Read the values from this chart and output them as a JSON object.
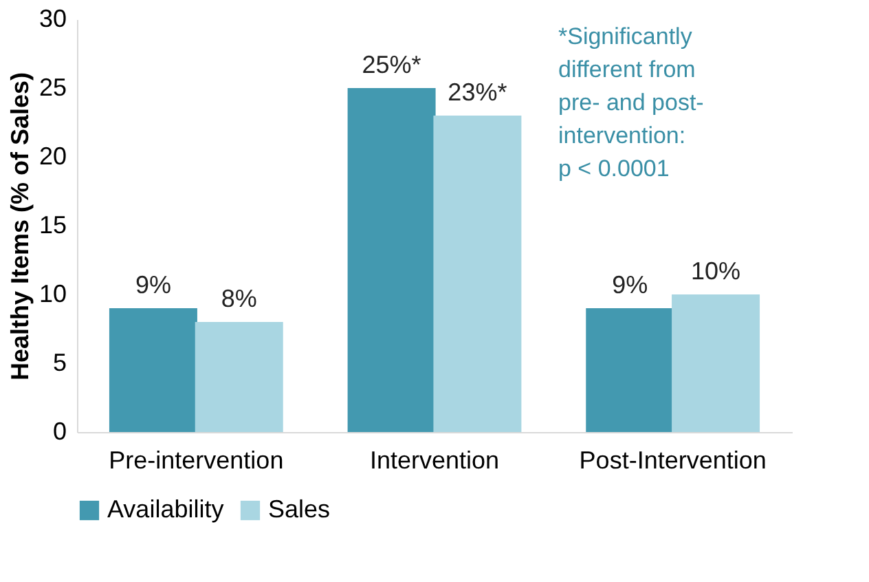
{
  "chart_data": {
    "type": "bar",
    "ylabel": "Healthy Items (% of Sales)",
    "categories": [
      "Pre-intervention",
      "Intervention",
      "Post-Intervention"
    ],
    "series": [
      {
        "name": "Availability",
        "color": "#4399b0",
        "values": [
          9,
          25,
          9
        ],
        "value_labels": [
          "9%",
          "25%*",
          "9%"
        ]
      },
      {
        "name": "Sales",
        "color": "#a9d6e2",
        "values": [
          8,
          23,
          10
        ],
        "value_labels": [
          "8%",
          "23%*",
          "10%"
        ]
      }
    ],
    "ylim": [
      0,
      30
    ],
    "yticks": [
      0,
      5,
      10,
      15,
      20,
      25,
      30
    ],
    "grid": false,
    "legend": "bottom",
    "annotations": [
      "*Significantly\ndifferent from\npre- and post-\nintervention:\np < 0.0001"
    ]
  }
}
